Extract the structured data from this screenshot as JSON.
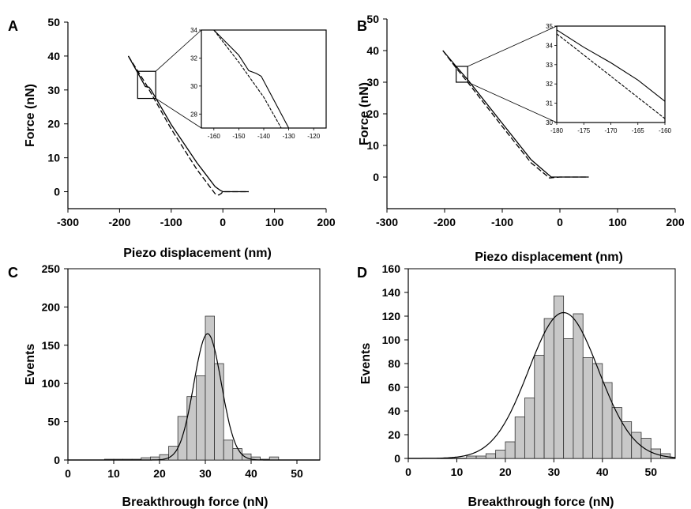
{
  "colors": {
    "axis": "#000000",
    "bar_fill": "#c8c8c8",
    "bar_stroke": "#333333",
    "background": "#ffffff"
  },
  "chart_data": [
    {
      "panel": "A",
      "type": "line",
      "xlabel": "Piezo displacement (nm)",
      "ylabel": "Force (nN)",
      "xlim": [
        -300,
        200
      ],
      "ylim": [
        -5,
        50
      ],
      "xticks": [
        "-300",
        "-200",
        "-100",
        "0",
        "100",
        "200"
      ],
      "yticks": [
        "0",
        "10",
        "20",
        "30",
        "40",
        "50"
      ],
      "series": [
        {
          "style": "solid",
          "x": [
            -183,
            -150,
            -143,
            -139,
            -100,
            -50,
            -15,
            -5,
            0,
            50
          ],
          "y": [
            40,
            31,
            30.8,
            30,
            19.8,
            8.5,
            1.5,
            0.4,
            0,
            0
          ]
        },
        {
          "style": "dashed",
          "x": [
            -183,
            -150,
            -100,
            -50,
            -15,
            -8,
            -3,
            0,
            20,
            50
          ],
          "y": [
            40,
            32,
            18.5,
            6.5,
            -0.6,
            -1.0,
            -0.5,
            0,
            0,
            0
          ]
        }
      ],
      "inset": {
        "xlim": [
          -165,
          -115
        ],
        "ylim": [
          27,
          34
        ],
        "xticks": [
          "-160",
          "-150",
          "-140",
          "-130",
          "-120"
        ],
        "yticks": [
          "28",
          "30",
          "32",
          "34"
        ],
        "zoom_box": {
          "x": [
            -165,
            -130
          ],
          "y": [
            27.5,
            35.5
          ]
        },
        "series": [
          {
            "style": "solid",
            "x": [
              -160,
              -150,
              -146,
              -143,
              -141,
              -130
            ],
            "y": [
              34,
              32.2,
              31.1,
              30.9,
              30.7,
              27
            ]
          },
          {
            "style": "dashed",
            "x": [
              -160,
              -150,
              -140,
              -133
            ],
            "y": [
              34,
              31.7,
              29.2,
              27
            ]
          }
        ]
      }
    },
    {
      "panel": "B",
      "type": "line",
      "xlabel": "Piezo displacement (nm)",
      "ylabel": "Force (nN)",
      "xlim": [
        -300,
        200
      ],
      "ylim": [
        -10,
        50
      ],
      "xticks": [
        "-300",
        "-200",
        "-100",
        "0",
        "100",
        "200"
      ],
      "yticks": [
        "0",
        "10",
        "20",
        "30",
        "40",
        "50"
      ],
      "series": [
        {
          "style": "solid",
          "x": [
            -203,
            -180,
            -160,
            -100,
            -50,
            -15,
            0,
            50
          ],
          "y": [
            40,
            35,
            30.8,
            17,
            5.5,
            0,
            0,
            0
          ]
        },
        {
          "style": "dashed",
          "x": [
            -203,
            -180,
            -160,
            -100,
            -50,
            -18,
            0,
            50
          ],
          "y": [
            40,
            34.5,
            30,
            16,
            4.5,
            -0.3,
            0,
            0
          ]
        }
      ],
      "inset": {
        "xlim": [
          -180,
          -160
        ],
        "ylim": [
          30,
          35
        ],
        "xticks": [
          "-180",
          "-175",
          "-170",
          "-165",
          "-160"
        ],
        "yticks": [
          "30",
          "31",
          "32",
          "33",
          "34",
          "35"
        ],
        "zoom_box": {
          "x": [
            -180,
            -160
          ],
          "y": [
            30,
            35
          ]
        },
        "series": [
          {
            "style": "solid",
            "x": [
              -180,
              -175,
              -170,
              -165,
              -160
            ],
            "y": [
              34.8,
              33.9,
              33.1,
              32.2,
              31.1
            ]
          },
          {
            "style": "dashed",
            "x": [
              -180,
              -175,
              -170,
              -165,
              -160
            ],
            "y": [
              34.6,
              33.5,
              32.4,
              31.3,
              30.2
            ]
          }
        ]
      }
    },
    {
      "panel": "C",
      "type": "bar",
      "xlabel": "Breakthrough force (nN)",
      "ylabel": "Events",
      "xlim": [
        0,
        55
      ],
      "ylim": [
        0,
        250
      ],
      "xticks": [
        "0",
        "10",
        "20",
        "30",
        "40",
        "50"
      ],
      "yticks": [
        "0",
        "50",
        "100",
        "150",
        "200",
        "250"
      ],
      "bin_width": 2,
      "bin_starts": [
        8,
        10,
        12,
        14,
        16,
        18,
        20,
        22,
        24,
        26,
        28,
        30,
        32,
        34,
        36,
        38,
        40,
        42,
        44
      ],
      "values": [
        1,
        1,
        1,
        1,
        3,
        4,
        7,
        18,
        57,
        83,
        110,
        188,
        126,
        26,
        15,
        8,
        4,
        1,
        4
      ],
      "fit": {
        "type": "gaussian",
        "mean": 30.5,
        "sd": 3.0,
        "peak": 165
      }
    },
    {
      "panel": "D",
      "type": "bar",
      "xlabel": "Breakthrough force (nN)",
      "ylabel": "Events",
      "xlim": [
        0,
        55
      ],
      "ylim": [
        0,
        160
      ],
      "xticks": [
        "0",
        "10",
        "20",
        "30",
        "40",
        "50"
      ],
      "yticks": [
        "0",
        "20",
        "40",
        "60",
        "80",
        "100",
        "120",
        "140",
        "160"
      ],
      "bin_width": 2,
      "bin_starts": [
        12,
        14,
        16,
        18,
        20,
        22,
        24,
        26,
        28,
        30,
        32,
        34,
        36,
        38,
        40,
        42,
        44,
        46,
        48,
        50,
        52
      ],
      "values": [
        2,
        2,
        4,
        7,
        14,
        35,
        51,
        87,
        118,
        137,
        101,
        122,
        85,
        80,
        64,
        43,
        31,
        22,
        17,
        8,
        4
      ],
      "fit": {
        "type": "gaussian",
        "mean": 32,
        "sd": 7.2,
        "peak": 123
      }
    }
  ]
}
